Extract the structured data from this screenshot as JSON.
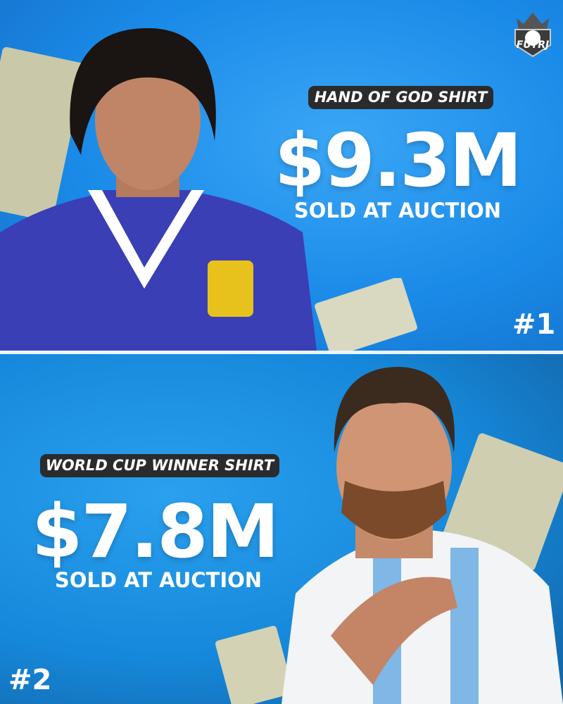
{
  "brand": {
    "logo_text": "FUTRJ",
    "icon": "crown-football-shield-logo"
  },
  "items": [
    {
      "label": "HAND OF GOD SHIRT",
      "price": "$9.3M",
      "caption": "SOLD AT AUCTION",
      "rank": "#1"
    },
    {
      "label": "WORLD CUP WINNER SHIRT",
      "price": "$7.8M",
      "caption": "SOLD AT AUCTION",
      "rank": "#2"
    }
  ],
  "colors": {
    "background_blue": "#1a8ae8",
    "pill": "#2a2b2d",
    "text": "#ffffff"
  }
}
